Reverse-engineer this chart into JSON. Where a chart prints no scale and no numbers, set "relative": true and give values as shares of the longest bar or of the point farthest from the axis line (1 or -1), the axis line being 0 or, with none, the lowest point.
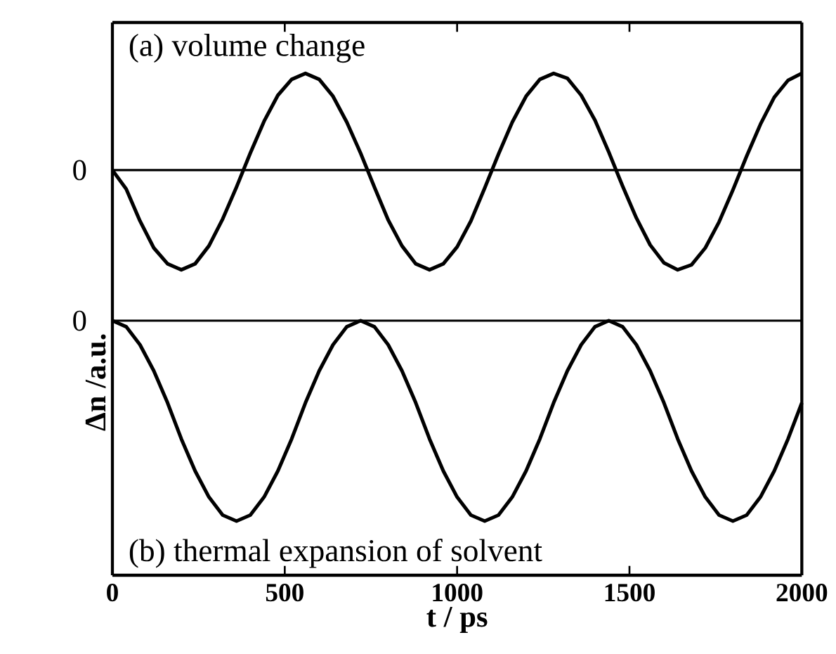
{
  "chart_data": [
    {
      "type": "line",
      "relative": true,
      "color": "#000000",
      "ylabel": "**Δn /a.u.**",
      "xlim": [
        0,
        2000
      ],
      "xticks": [
        0,
        500,
        1000,
        1500,
        2000
      ],
      "tick_labels": false,
      "annotations": [
        "(a) volume change"
      ],
      "ref_lines": [
        {
          "axis": "y",
          "value": 0,
          "label": "0"
        }
      ],
      "x": [
        0,
        40,
        80,
        120,
        160,
        200,
        240,
        280,
        320,
        360,
        400,
        440,
        480,
        520,
        560,
        600,
        640,
        680,
        720,
        760,
        800,
        840,
        880,
        920,
        960,
        1000,
        1040,
        1080,
        1120,
        1160,
        1200,
        1240,
        1280,
        1320,
        1360,
        1400,
        1440,
        1480,
        1520,
        1560,
        1600,
        1640,
        1680,
        1720,
        1760,
        1800,
        1840,
        1880,
        1920,
        1960,
        2000
      ],
      "values": [
        0,
        -0.19,
        -0.51,
        -0.78,
        -0.94,
        -1.0,
        -0.94,
        -0.76,
        -0.49,
        -0.17,
        0.17,
        0.49,
        0.75,
        0.91,
        0.97,
        0.91,
        0.74,
        0.48,
        0.17,
        -0.17,
        -0.5,
        -0.76,
        -0.94,
        -1.0,
        -0.94,
        -0.77,
        -0.51,
        -0.18,
        0.16,
        0.48,
        0.74,
        0.91,
        0.97,
        0.92,
        0.75,
        0.5,
        0.18,
        -0.16,
        -0.48,
        -0.75,
        -0.93,
        -1.0,
        -0.95,
        -0.78,
        -0.52,
        -0.2,
        0.14,
        0.46,
        0.73,
        0.9,
        0.97
      ]
    },
    {
      "type": "line",
      "relative": true,
      "color": "#000000",
      "xlabel": "**t / ps**",
      "xlim": [
        0,
        2000
      ],
      "xticks": [
        0,
        500,
        1000,
        1500,
        2000
      ],
      "annotations": [
        "(b) thermal expansion of solvent"
      ],
      "ref_lines": [
        {
          "axis": "y",
          "value": 0,
          "label": "0"
        }
      ],
      "x": [
        0,
        40,
        80,
        120,
        160,
        200,
        240,
        280,
        320,
        360,
        400,
        440,
        480,
        520,
        560,
        600,
        640,
        680,
        720,
        760,
        800,
        840,
        880,
        920,
        960,
        1000,
        1040,
        1080,
        1120,
        1160,
        1200,
        1240,
        1280,
        1320,
        1360,
        1400,
        1440,
        1480,
        1520,
        1560,
        1600,
        1640,
        1680,
        1720,
        1760,
        1800,
        1840,
        1880,
        1920,
        1960,
        2000
      ],
      "values": [
        0,
        -0.03,
        -0.12,
        -0.25,
        -0.41,
        -0.59,
        -0.75,
        -0.88,
        -0.97,
        -1.0,
        -0.97,
        -0.88,
        -0.75,
        -0.59,
        -0.41,
        -0.25,
        -0.12,
        -0.03,
        0,
        -0.03,
        -0.12,
        -0.25,
        -0.41,
        -0.59,
        -0.75,
        -0.88,
        -0.97,
        -1.0,
        -0.97,
        -0.88,
        -0.75,
        -0.59,
        -0.41,
        -0.25,
        -0.12,
        -0.03,
        0,
        -0.03,
        -0.12,
        -0.25,
        -0.41,
        -0.59,
        -0.75,
        -0.88,
        -0.97,
        -1.0,
        -0.97,
        -0.88,
        -0.75,
        -0.59,
        -0.41
      ]
    }
  ]
}
